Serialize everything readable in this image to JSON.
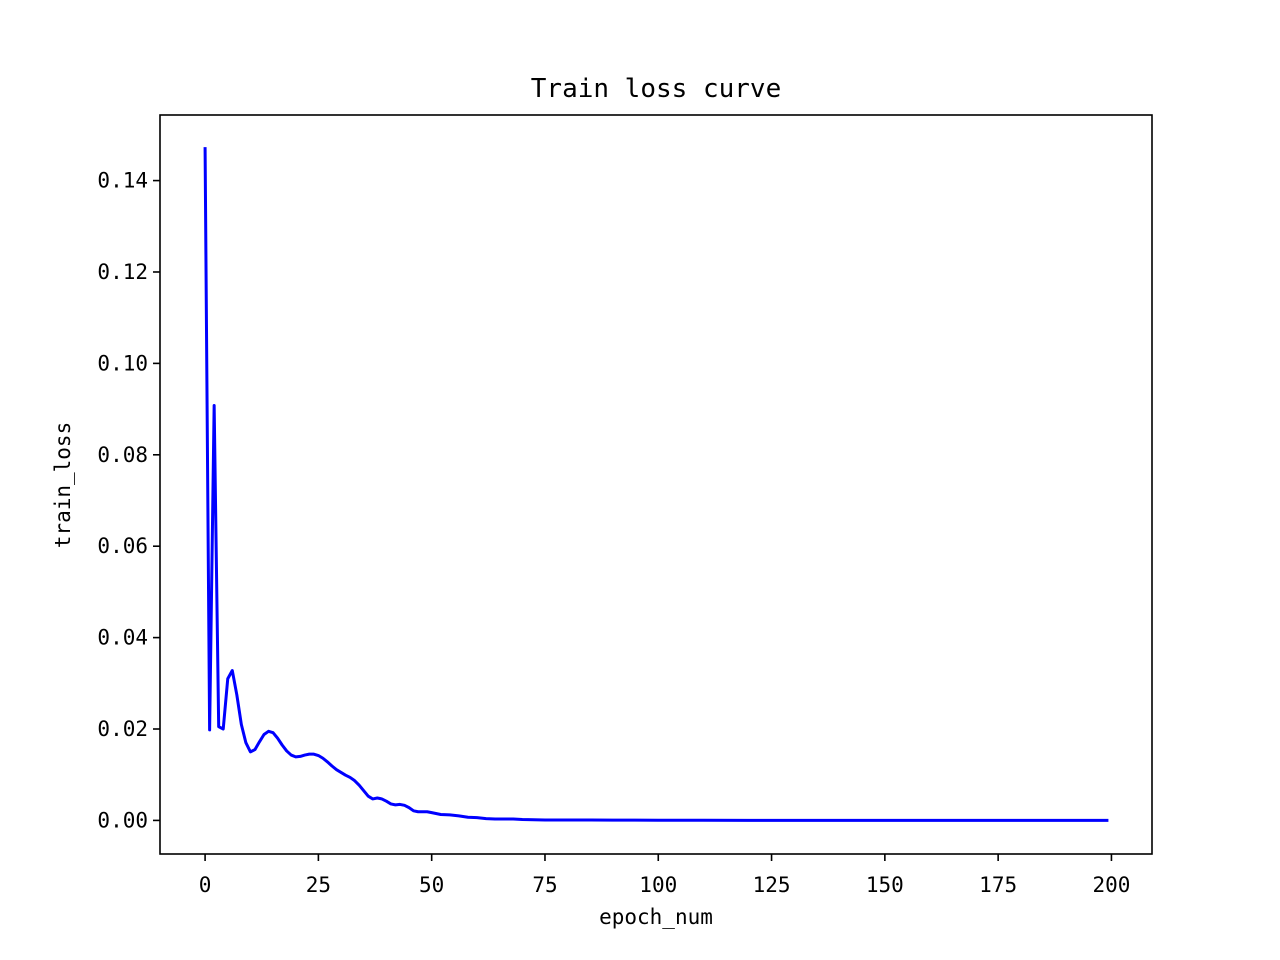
{
  "chart_data": {
    "type": "line",
    "title": "Train loss curve",
    "xlabel": "epoch_num",
    "ylabel": "train_loss",
    "xlim": [
      -9.95,
      208.95
    ],
    "ylim": [
      -0.00735,
      0.15435
    ],
    "xticks": [
      0,
      25,
      50,
      75,
      100,
      125,
      150,
      175,
      200
    ],
    "xtick_labels": [
      "0",
      "25",
      "50",
      "75",
      "100",
      "125",
      "150",
      "175",
      "200"
    ],
    "yticks": [
      0.0,
      0.02,
      0.04,
      0.06,
      0.08,
      0.1,
      0.12,
      0.14
    ],
    "ytick_labels": [
      "0.00",
      "0.02",
      "0.04",
      "0.06",
      "0.08",
      "0.10",
      "0.12",
      "0.14"
    ],
    "grid": false,
    "legend": false,
    "line_color": "#0000ff",
    "series": [
      {
        "x": [
          0,
          1,
          2,
          3,
          4,
          5,
          6,
          7,
          8,
          9,
          10,
          11,
          12,
          13,
          14,
          15,
          16,
          17,
          18,
          19,
          20,
          21,
          22,
          23,
          24,
          25,
          26,
          27,
          28,
          29,
          30,
          31,
          32,
          33,
          34,
          35,
          36,
          37,
          38,
          39,
          40,
          41,
          42,
          43,
          44,
          45,
          46,
          47,
          48,
          49,
          50,
          52,
          54,
          56,
          58,
          60,
          62,
          64,
          66,
          68,
          70,
          75,
          80,
          85,
          90,
          100,
          110,
          120,
          130,
          140,
          150,
          160,
          170,
          180,
          190,
          199
        ],
        "y": [
          0.147,
          0.0198,
          0.0908,
          0.0205,
          0.02,
          0.031,
          0.0328,
          0.0275,
          0.021,
          0.017,
          0.015,
          0.0155,
          0.0172,
          0.0188,
          0.0195,
          0.0192,
          0.018,
          0.0165,
          0.0152,
          0.0143,
          0.0139,
          0.014,
          0.0143,
          0.0145,
          0.0145,
          0.0142,
          0.0136,
          0.0128,
          0.0119,
          0.0111,
          0.0105,
          0.0099,
          0.0094,
          0.0087,
          0.0077,
          0.0065,
          0.0053,
          0.0047,
          0.0049,
          0.0047,
          0.0042,
          0.0036,
          0.0034,
          0.0035,
          0.0033,
          0.0028,
          0.0021,
          0.0019,
          0.0019,
          0.0019,
          0.0017,
          0.0013,
          0.0012,
          0.001,
          0.0007,
          0.0006,
          0.0004,
          0.0003,
          0.0003,
          0.0003,
          0.0002,
          0.0001,
          0.0001,
          8e-05,
          6e-05,
          4e-05,
          3e-05,
          2e-05,
          2e-05,
          1e-05,
          1e-05,
          1e-05,
          1e-05,
          1e-05,
          1e-05,
          1e-05
        ]
      }
    ]
  }
}
